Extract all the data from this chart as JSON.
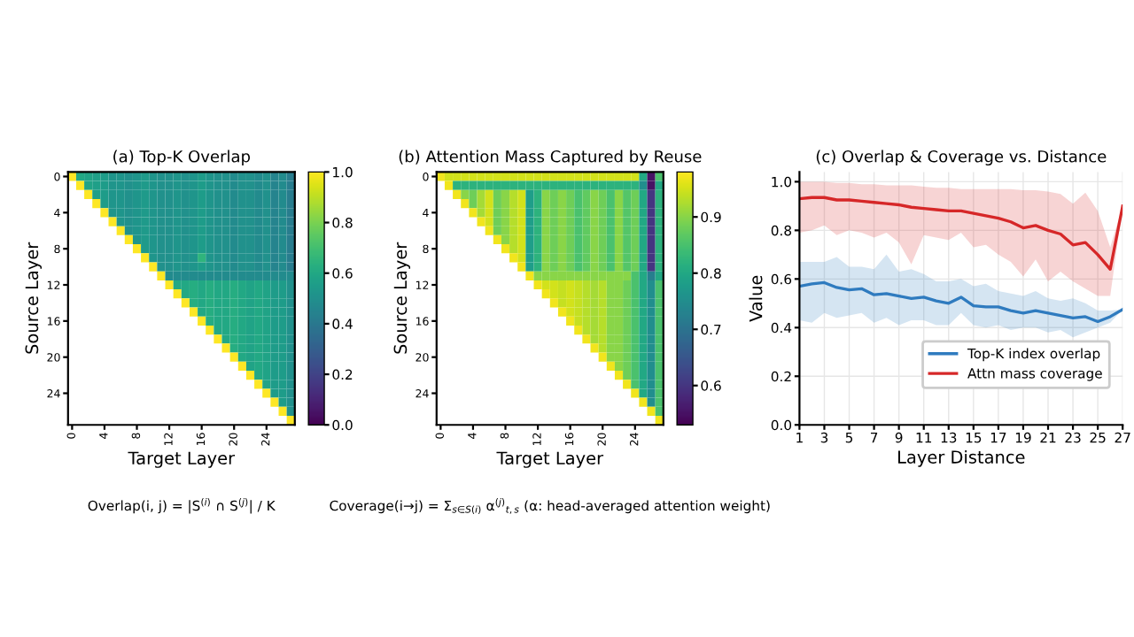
{
  "chart_data": [
    {
      "type": "heatmap",
      "title": "(a) Top-K Overlap",
      "xlabel": "Target Layer",
      "ylabel": "Source Layer",
      "categories": [
        "0",
        null,
        null,
        null,
        "4",
        null,
        null,
        null,
        "8",
        null,
        null,
        null,
        "12",
        null,
        null,
        null,
        "16",
        null,
        null,
        null,
        "20",
        null,
        null,
        null,
        "24",
        null,
        null,
        null
      ],
      "y_categories": [
        "0",
        null,
        null,
        null,
        "4",
        null,
        null,
        null,
        "8",
        null,
        null,
        null,
        "12",
        null,
        null,
        null,
        "16",
        null,
        null,
        null,
        "20",
        null,
        null,
        null,
        "24",
        null,
        null,
        null
      ],
      "clim": [
        0.0,
        1.0
      ],
      "cticks": [
        {
          "value": 0,
          "label": "0.0"
        },
        0.2,
        0.4,
        0.6,
        0.8,
        {
          "value": 1,
          "label": "1.0"
        }
      ],
      "annotations": [
        "Overlap(i, j) = |S$^{(i)}$ ∩ S$^{(j)}$| / K"
      ],
      "cells": [
        [
          1.0,
          0.6,
          0.58,
          0.56,
          0.55,
          0.52,
          0.52,
          0.5,
          0.52,
          0.54,
          0.52,
          0.5,
          0.5,
          0.52,
          0.5,
          0.52,
          0.55,
          0.52,
          0.5,
          0.5,
          0.48,
          0.5,
          0.5,
          0.48,
          0.5,
          0.45,
          0.48,
          0.42
        ],
        [
          null,
          1.0,
          0.58,
          0.56,
          0.55,
          0.52,
          0.52,
          0.5,
          0.52,
          0.54,
          0.52,
          0.5,
          0.5,
          0.52,
          0.5,
          0.52,
          0.55,
          0.52,
          0.5,
          0.5,
          0.48,
          0.5,
          0.5,
          0.48,
          0.5,
          0.45,
          0.48,
          0.42
        ],
        [
          null,
          null,
          1.0,
          0.56,
          0.55,
          0.52,
          0.52,
          0.5,
          0.52,
          0.54,
          0.52,
          0.5,
          0.5,
          0.52,
          0.5,
          0.52,
          0.55,
          0.52,
          0.5,
          0.5,
          0.48,
          0.5,
          0.5,
          0.48,
          0.5,
          0.45,
          0.48,
          0.42
        ],
        [
          null,
          null,
          null,
          1.0,
          0.55,
          0.52,
          0.52,
          0.5,
          0.52,
          0.54,
          0.52,
          0.5,
          0.5,
          0.52,
          0.5,
          0.52,
          0.55,
          0.52,
          0.5,
          0.5,
          0.48,
          0.5,
          0.5,
          0.48,
          0.5,
          0.45,
          0.48,
          0.42
        ],
        [
          null,
          null,
          null,
          null,
          1.0,
          0.52,
          0.52,
          0.5,
          0.52,
          0.54,
          0.52,
          0.5,
          0.5,
          0.52,
          0.5,
          0.52,
          0.55,
          0.52,
          0.5,
          0.5,
          0.48,
          0.5,
          0.5,
          0.48,
          0.5,
          0.45,
          0.48,
          0.42
        ],
        [
          null,
          null,
          null,
          null,
          null,
          1.0,
          0.52,
          0.5,
          0.52,
          0.54,
          0.52,
          0.5,
          0.5,
          0.52,
          0.5,
          0.52,
          0.55,
          0.52,
          0.5,
          0.5,
          0.48,
          0.5,
          0.5,
          0.48,
          0.5,
          0.45,
          0.48,
          0.42
        ],
        [
          null,
          null,
          null,
          null,
          null,
          null,
          1.0,
          0.5,
          0.52,
          0.54,
          0.52,
          0.5,
          0.5,
          0.52,
          0.5,
          0.52,
          0.55,
          0.52,
          0.5,
          0.5,
          0.48,
          0.5,
          0.5,
          0.48,
          0.5,
          0.45,
          0.48,
          0.42
        ],
        [
          null,
          null,
          null,
          null,
          null,
          null,
          null,
          1.0,
          0.52,
          0.54,
          0.52,
          0.5,
          0.5,
          0.52,
          0.5,
          0.52,
          0.55,
          0.52,
          0.5,
          0.5,
          0.48,
          0.5,
          0.5,
          0.48,
          0.5,
          0.45,
          0.48,
          0.42
        ],
        [
          null,
          null,
          null,
          null,
          null,
          null,
          null,
          null,
          1.0,
          0.54,
          0.52,
          0.5,
          0.5,
          0.52,
          0.5,
          0.52,
          0.55,
          0.52,
          0.5,
          0.5,
          0.48,
          0.5,
          0.5,
          0.48,
          0.5,
          0.45,
          0.48,
          0.42
        ],
        [
          null,
          null,
          null,
          null,
          null,
          null,
          null,
          null,
          null,
          1.0,
          0.52,
          0.5,
          0.5,
          0.52,
          0.5,
          0.52,
          0.65,
          0.52,
          0.5,
          0.5,
          0.48,
          0.5,
          0.5,
          0.48,
          0.5,
          0.45,
          0.48,
          0.42
        ],
        [
          null,
          null,
          null,
          null,
          null,
          null,
          null,
          null,
          null,
          null,
          1.0,
          0.5,
          0.5,
          0.52,
          0.5,
          0.52,
          0.55,
          0.52,
          0.5,
          0.5,
          0.48,
          0.5,
          0.5,
          0.48,
          0.5,
          0.45,
          0.48,
          0.42
        ],
        [
          null,
          null,
          null,
          null,
          null,
          null,
          null,
          null,
          null,
          null,
          null,
          1.0,
          0.48,
          0.48,
          0.48,
          0.48,
          0.48,
          0.48,
          0.48,
          0.48,
          0.48,
          0.48,
          0.48,
          0.48,
          0.48,
          0.48,
          0.48,
          0.48
        ],
        [
          null,
          null,
          null,
          null,
          null,
          null,
          null,
          null,
          null,
          null,
          null,
          null,
          1.0,
          0.6,
          0.6,
          0.62,
          0.6,
          0.62,
          0.6,
          0.6,
          0.62,
          0.6,
          0.58,
          0.6,
          0.58,
          0.55,
          0.55,
          0.5
        ],
        [
          null,
          null,
          null,
          null,
          null,
          null,
          null,
          null,
          null,
          null,
          null,
          null,
          null,
          1.0,
          0.6,
          0.62,
          0.6,
          0.62,
          0.6,
          0.6,
          0.62,
          0.6,
          0.58,
          0.6,
          0.58,
          0.55,
          0.55,
          0.5
        ],
        [
          null,
          null,
          null,
          null,
          null,
          null,
          null,
          null,
          null,
          null,
          null,
          null,
          null,
          null,
          1.0,
          0.62,
          0.6,
          0.62,
          0.6,
          0.6,
          0.62,
          0.6,
          0.58,
          0.6,
          0.58,
          0.55,
          0.55,
          0.5
        ],
        [
          null,
          null,
          null,
          null,
          null,
          null,
          null,
          null,
          null,
          null,
          null,
          null,
          null,
          null,
          null,
          1.0,
          0.6,
          0.62,
          0.6,
          0.6,
          0.62,
          0.6,
          0.58,
          0.6,
          0.58,
          0.55,
          0.55,
          0.5
        ],
        [
          null,
          null,
          null,
          null,
          null,
          null,
          null,
          null,
          null,
          null,
          null,
          null,
          null,
          null,
          null,
          null,
          1.0,
          0.62,
          0.6,
          0.6,
          0.62,
          0.6,
          0.58,
          0.6,
          0.58,
          0.55,
          0.55,
          0.5
        ],
        [
          null,
          null,
          null,
          null,
          null,
          null,
          null,
          null,
          null,
          null,
          null,
          null,
          null,
          null,
          null,
          null,
          null,
          1.0,
          0.6,
          0.6,
          0.62,
          0.6,
          0.58,
          0.6,
          0.58,
          0.55,
          0.55,
          0.5
        ],
        [
          null,
          null,
          null,
          null,
          null,
          null,
          null,
          null,
          null,
          null,
          null,
          null,
          null,
          null,
          null,
          null,
          null,
          null,
          1.0,
          0.6,
          0.62,
          0.6,
          0.58,
          0.6,
          0.58,
          0.55,
          0.55,
          0.5
        ],
        [
          null,
          null,
          null,
          null,
          null,
          null,
          null,
          null,
          null,
          null,
          null,
          null,
          null,
          null,
          null,
          null,
          null,
          null,
          null,
          1.0,
          0.62,
          0.6,
          0.58,
          0.6,
          0.58,
          0.55,
          0.55,
          0.5
        ],
        [
          null,
          null,
          null,
          null,
          null,
          null,
          null,
          null,
          null,
          null,
          null,
          null,
          null,
          null,
          null,
          null,
          null,
          null,
          null,
          null,
          1.0,
          0.6,
          0.58,
          0.6,
          0.58,
          0.55,
          0.55,
          0.5
        ],
        [
          null,
          null,
          null,
          null,
          null,
          null,
          null,
          null,
          null,
          null,
          null,
          null,
          null,
          null,
          null,
          null,
          null,
          null,
          null,
          null,
          null,
          1.0,
          0.58,
          0.6,
          0.58,
          0.55,
          0.55,
          0.5
        ],
        [
          null,
          null,
          null,
          null,
          null,
          null,
          null,
          null,
          null,
          null,
          null,
          null,
          null,
          null,
          null,
          null,
          null,
          null,
          null,
          null,
          null,
          null,
          1.0,
          0.6,
          0.58,
          0.55,
          0.55,
          0.5
        ],
        [
          null,
          null,
          null,
          null,
          null,
          null,
          null,
          null,
          null,
          null,
          null,
          null,
          null,
          null,
          null,
          null,
          null,
          null,
          null,
          null,
          null,
          null,
          null,
          1.0,
          0.58,
          0.55,
          0.55,
          0.5
        ],
        [
          null,
          null,
          null,
          null,
          null,
          null,
          null,
          null,
          null,
          null,
          null,
          null,
          null,
          null,
          null,
          null,
          null,
          null,
          null,
          null,
          null,
          null,
          null,
          null,
          1.0,
          0.55,
          0.55,
          0.5
        ],
        [
          null,
          null,
          null,
          null,
          null,
          null,
          null,
          null,
          null,
          null,
          null,
          null,
          null,
          null,
          null,
          null,
          null,
          null,
          null,
          null,
          null,
          null,
          null,
          null,
          null,
          1.0,
          0.55,
          0.5
        ],
        [
          null,
          null,
          null,
          null,
          null,
          null,
          null,
          null,
          null,
          null,
          null,
          null,
          null,
          null,
          null,
          null,
          null,
          null,
          null,
          null,
          null,
          null,
          null,
          null,
          null,
          null,
          1.0,
          0.5
        ],
        [
          null,
          null,
          null,
          null,
          null,
          null,
          null,
          null,
          null,
          null,
          null,
          null,
          null,
          null,
          null,
          null,
          null,
          null,
          null,
          null,
          null,
          null,
          null,
          null,
          null,
          null,
          null,
          1.0
        ]
      ]
    },
    {
      "type": "heatmap",
      "title": "(b) Attention Mass Captured by Reuse",
      "xlabel": "Target Layer",
      "ylabel": "Source Layer",
      "categories": [
        "0",
        null,
        null,
        null,
        "4",
        null,
        null,
        null,
        "8",
        null,
        null,
        null,
        "12",
        null,
        null,
        null,
        "16",
        null,
        null,
        null,
        "20",
        null,
        null,
        null,
        "24",
        null,
        null,
        null
      ],
      "y_categories": [
        "0",
        null,
        null,
        null,
        "4",
        null,
        null,
        null,
        "8",
        null,
        null,
        null,
        "12",
        null,
        null,
        null,
        "16",
        null,
        null,
        null,
        "20",
        null,
        null,
        null,
        "24",
        null,
        null,
        null
      ],
      "clim": [
        0.53,
        0.98
      ],
      "cticks": [
        0.6,
        0.7,
        0.8,
        0.9
      ],
      "annotations": [
        "Coverage(i→j) = Σ$_{s∈S(i)}$ α$^{(j)}$$_{t,s}$ (α: head-averaged attention weight)"
      ],
      "cells": [
        [
          0.97,
          0.95,
          0.95,
          0.95,
          0.95,
          0.95,
          0.95,
          0.95,
          0.95,
          0.95,
          0.95,
          0.95,
          0.95,
          0.95,
          0.95,
          0.95,
          0.95,
          0.95,
          0.95,
          0.95,
          0.95,
          0.95,
          0.95,
          0.95,
          0.95,
          0.8,
          0.55,
          0.85
        ],
        [
          null,
          0.97,
          0.82,
          0.82,
          0.82,
          0.82,
          0.82,
          0.82,
          0.82,
          0.82,
          0.82,
          0.82,
          0.82,
          0.82,
          0.82,
          0.82,
          0.82,
          0.82,
          0.82,
          0.82,
          0.82,
          0.82,
          0.82,
          0.82,
          0.82,
          0.75,
          0.55,
          0.8
        ],
        [
          null,
          null,
          0.97,
          0.9,
          0.88,
          0.92,
          0.95,
          0.88,
          0.9,
          0.93,
          0.95,
          0.78,
          0.82,
          0.9,
          0.88,
          0.9,
          0.88,
          0.85,
          0.87,
          0.9,
          0.88,
          0.85,
          0.9,
          0.86,
          0.88,
          0.8,
          0.6,
          0.82
        ],
        [
          null,
          null,
          null,
          0.97,
          0.88,
          0.92,
          0.95,
          0.88,
          0.9,
          0.93,
          0.95,
          0.78,
          0.82,
          0.9,
          0.88,
          0.9,
          0.88,
          0.85,
          0.87,
          0.9,
          0.88,
          0.85,
          0.9,
          0.86,
          0.88,
          0.8,
          0.6,
          0.82
        ],
        [
          null,
          null,
          null,
          null,
          0.97,
          0.92,
          0.95,
          0.88,
          0.9,
          0.93,
          0.95,
          0.78,
          0.82,
          0.9,
          0.88,
          0.9,
          0.88,
          0.85,
          0.87,
          0.9,
          0.88,
          0.85,
          0.9,
          0.86,
          0.88,
          0.8,
          0.6,
          0.82
        ],
        [
          null,
          null,
          null,
          null,
          null,
          0.97,
          0.95,
          0.88,
          0.9,
          0.93,
          0.95,
          0.78,
          0.82,
          0.9,
          0.88,
          0.9,
          0.88,
          0.85,
          0.87,
          0.9,
          0.88,
          0.85,
          0.9,
          0.86,
          0.88,
          0.8,
          0.6,
          0.82
        ],
        [
          null,
          null,
          null,
          null,
          null,
          null,
          0.97,
          0.88,
          0.9,
          0.93,
          0.95,
          0.78,
          0.82,
          0.9,
          0.88,
          0.9,
          0.88,
          0.85,
          0.87,
          0.9,
          0.88,
          0.85,
          0.9,
          0.86,
          0.88,
          0.8,
          0.6,
          0.82
        ],
        [
          null,
          null,
          null,
          null,
          null,
          null,
          null,
          0.97,
          0.9,
          0.93,
          0.95,
          0.78,
          0.82,
          0.9,
          0.88,
          0.9,
          0.88,
          0.85,
          0.87,
          0.9,
          0.88,
          0.85,
          0.9,
          0.86,
          0.88,
          0.8,
          0.6,
          0.82
        ],
        [
          null,
          null,
          null,
          null,
          null,
          null,
          null,
          null,
          0.97,
          0.93,
          0.95,
          0.78,
          0.82,
          0.9,
          0.88,
          0.9,
          0.88,
          0.85,
          0.87,
          0.9,
          0.88,
          0.85,
          0.9,
          0.86,
          0.88,
          0.8,
          0.6,
          0.82
        ],
        [
          null,
          null,
          null,
          null,
          null,
          null,
          null,
          null,
          null,
          0.97,
          0.95,
          0.78,
          0.82,
          0.9,
          0.88,
          0.9,
          0.88,
          0.85,
          0.87,
          0.9,
          0.88,
          0.85,
          0.9,
          0.86,
          0.88,
          0.8,
          0.6,
          0.82
        ],
        [
          null,
          null,
          null,
          null,
          null,
          null,
          null,
          null,
          null,
          null,
          0.97,
          0.78,
          0.82,
          0.9,
          0.88,
          0.9,
          0.88,
          0.85,
          0.87,
          0.9,
          0.88,
          0.85,
          0.9,
          0.86,
          0.88,
          0.8,
          0.6,
          0.82
        ],
        [
          null,
          null,
          null,
          null,
          null,
          null,
          null,
          null,
          null,
          null,
          null,
          0.97,
          0.9,
          0.9,
          0.9,
          0.9,
          0.9,
          0.9,
          0.9,
          0.9,
          0.9,
          0.9,
          0.9,
          0.9,
          0.85,
          0.8,
          0.72,
          0.8
        ],
        [
          null,
          null,
          null,
          null,
          null,
          null,
          null,
          null,
          null,
          null,
          null,
          null,
          0.97,
          0.95,
          0.95,
          0.94,
          0.95,
          0.94,
          0.93,
          0.92,
          0.93,
          0.9,
          0.9,
          0.88,
          0.85,
          0.8,
          0.75,
          0.85
        ],
        [
          null,
          null,
          null,
          null,
          null,
          null,
          null,
          null,
          null,
          null,
          null,
          null,
          null,
          0.97,
          0.95,
          0.94,
          0.95,
          0.94,
          0.93,
          0.92,
          0.93,
          0.9,
          0.9,
          0.88,
          0.85,
          0.8,
          0.75,
          0.85
        ],
        [
          null,
          null,
          null,
          null,
          null,
          null,
          null,
          null,
          null,
          null,
          null,
          null,
          null,
          null,
          0.97,
          0.94,
          0.95,
          0.94,
          0.93,
          0.92,
          0.93,
          0.9,
          0.9,
          0.88,
          0.85,
          0.8,
          0.75,
          0.85
        ],
        [
          null,
          null,
          null,
          null,
          null,
          null,
          null,
          null,
          null,
          null,
          null,
          null,
          null,
          null,
          null,
          0.97,
          0.95,
          0.94,
          0.93,
          0.92,
          0.93,
          0.9,
          0.9,
          0.88,
          0.85,
          0.8,
          0.75,
          0.85
        ],
        [
          null,
          null,
          null,
          null,
          null,
          null,
          null,
          null,
          null,
          null,
          null,
          null,
          null,
          null,
          null,
          null,
          0.97,
          0.94,
          0.93,
          0.92,
          0.93,
          0.9,
          0.9,
          0.88,
          0.85,
          0.8,
          0.75,
          0.85
        ],
        [
          null,
          null,
          null,
          null,
          null,
          null,
          null,
          null,
          null,
          null,
          null,
          null,
          null,
          null,
          null,
          null,
          null,
          0.97,
          0.93,
          0.92,
          0.93,
          0.9,
          0.9,
          0.88,
          0.85,
          0.8,
          0.75,
          0.85
        ],
        [
          null,
          null,
          null,
          null,
          null,
          null,
          null,
          null,
          null,
          null,
          null,
          null,
          null,
          null,
          null,
          null,
          null,
          null,
          0.97,
          0.92,
          0.93,
          0.9,
          0.9,
          0.88,
          0.85,
          0.8,
          0.75,
          0.85
        ],
        [
          null,
          null,
          null,
          null,
          null,
          null,
          null,
          null,
          null,
          null,
          null,
          null,
          null,
          null,
          null,
          null,
          null,
          null,
          null,
          0.97,
          0.93,
          0.9,
          0.9,
          0.88,
          0.85,
          0.8,
          0.75,
          0.85
        ],
        [
          null,
          null,
          null,
          null,
          null,
          null,
          null,
          null,
          null,
          null,
          null,
          null,
          null,
          null,
          null,
          null,
          null,
          null,
          null,
          null,
          0.97,
          0.9,
          0.9,
          0.88,
          0.85,
          0.8,
          0.75,
          0.85
        ],
        [
          null,
          null,
          null,
          null,
          null,
          null,
          null,
          null,
          null,
          null,
          null,
          null,
          null,
          null,
          null,
          null,
          null,
          null,
          null,
          null,
          null,
          0.97,
          0.9,
          0.88,
          0.85,
          0.8,
          0.75,
          0.85
        ],
        [
          null,
          null,
          null,
          null,
          null,
          null,
          null,
          null,
          null,
          null,
          null,
          null,
          null,
          null,
          null,
          null,
          null,
          null,
          null,
          null,
          null,
          null,
          0.97,
          0.88,
          0.85,
          0.8,
          0.75,
          0.85
        ],
        [
          null,
          null,
          null,
          null,
          null,
          null,
          null,
          null,
          null,
          null,
          null,
          null,
          null,
          null,
          null,
          null,
          null,
          null,
          null,
          null,
          null,
          null,
          null,
          0.97,
          0.85,
          0.8,
          0.75,
          0.85
        ],
        [
          null,
          null,
          null,
          null,
          null,
          null,
          null,
          null,
          null,
          null,
          null,
          null,
          null,
          null,
          null,
          null,
          null,
          null,
          null,
          null,
          null,
          null,
          null,
          null,
          0.97,
          0.8,
          0.75,
          0.85
        ],
        [
          null,
          null,
          null,
          null,
          null,
          null,
          null,
          null,
          null,
          null,
          null,
          null,
          null,
          null,
          null,
          null,
          null,
          null,
          null,
          null,
          null,
          null,
          null,
          null,
          null,
          0.97,
          0.75,
          0.85
        ],
        [
          null,
          null,
          null,
          null,
          null,
          null,
          null,
          null,
          null,
          null,
          null,
          null,
          null,
          null,
          null,
          null,
          null,
          null,
          null,
          null,
          null,
          null,
          null,
          null,
          null,
          null,
          0.97,
          0.85
        ],
        [
          null,
          null,
          null,
          null,
          null,
          null,
          null,
          null,
          null,
          null,
          null,
          null,
          null,
          null,
          null,
          null,
          null,
          null,
          null,
          null,
          null,
          null,
          null,
          null,
          null,
          null,
          null,
          0.97
        ]
      ]
    },
    {
      "type": "line",
      "title": "(c) Overlap & Coverage vs. Distance",
      "xlabel": "Layer Distance",
      "ylabel": "Value",
      "x": [
        1,
        2,
        3,
        4,
        5,
        6,
        7,
        8,
        9,
        10,
        11,
        12,
        13,
        14,
        15,
        16,
        17,
        18,
        19,
        20,
        21,
        22,
        23,
        24,
        25,
        26,
        27
      ],
      "xlim": [
        1,
        27
      ],
      "xticks": [
        1,
        3,
        5,
        7,
        9,
        11,
        13,
        15,
        17,
        19,
        21,
        23,
        25,
        27
      ],
      "ylim": [
        0.0,
        1.04
      ],
      "yticks": [
        {
          "value": 0,
          "label": "0.0"
        },
        0.2,
        0.4,
        0.6,
        0.8,
        {
          "value": 1,
          "label": "1.0"
        }
      ],
      "grid": true,
      "legend": "bottom right",
      "series": [
        {
          "name": "Top-K index overlap",
          "color": "#2f7bbf",
          "values": [
            0.57,
            0.58,
            0.585,
            0.565,
            0.555,
            0.56,
            0.535,
            0.54,
            0.53,
            0.52,
            0.525,
            0.51,
            0.5,
            0.525,
            0.49,
            0.485,
            0.485,
            0.47,
            0.46,
            0.47,
            0.46,
            0.45,
            0.44,
            0.445,
            0.425,
            0.445,
            0.475
          ],
          "lower": [
            0.43,
            0.42,
            0.46,
            0.44,
            0.45,
            0.46,
            0.42,
            0.44,
            0.41,
            0.43,
            0.43,
            0.41,
            0.41,
            0.46,
            0.41,
            0.4,
            0.41,
            0.39,
            0.4,
            0.4,
            0.38,
            0.39,
            0.36,
            0.38,
            0.4,
            0.42,
            0.475
          ],
          "upper": [
            0.67,
            0.67,
            0.67,
            0.69,
            0.65,
            0.65,
            0.64,
            0.7,
            0.63,
            0.64,
            0.62,
            0.59,
            0.59,
            0.6,
            0.57,
            0.58,
            0.55,
            0.54,
            0.53,
            0.55,
            0.52,
            0.51,
            0.52,
            0.5,
            0.47,
            0.47,
            0.475
          ]
        },
        {
          "name": "Attn mass coverage",
          "color": "#d62728",
          "values": [
            0.93,
            0.935,
            0.935,
            0.925,
            0.925,
            0.92,
            0.915,
            0.91,
            0.905,
            0.895,
            0.89,
            0.885,
            0.88,
            0.88,
            0.87,
            0.86,
            0.85,
            0.835,
            0.81,
            0.82,
            0.8,
            0.785,
            0.74,
            0.75,
            0.7,
            0.64,
            0.9
          ],
          "lower": [
            0.79,
            0.8,
            0.82,
            0.78,
            0.8,
            0.79,
            0.77,
            0.79,
            0.75,
            0.66,
            0.78,
            0.77,
            0.76,
            0.79,
            0.73,
            0.74,
            0.7,
            0.67,
            0.61,
            0.68,
            0.59,
            0.63,
            0.59,
            0.56,
            0.53,
            0.53,
            0.9
          ],
          "upper": [
            1.0,
            1.0,
            1.0,
            0.995,
            0.995,
            0.99,
            0.99,
            0.985,
            0.985,
            0.985,
            0.98,
            0.975,
            0.975,
            0.97,
            0.97,
            0.97,
            0.97,
            0.97,
            0.965,
            0.965,
            0.96,
            0.95,
            0.91,
            0.955,
            0.88,
            0.73,
            0.9
          ]
        }
      ]
    }
  ]
}
